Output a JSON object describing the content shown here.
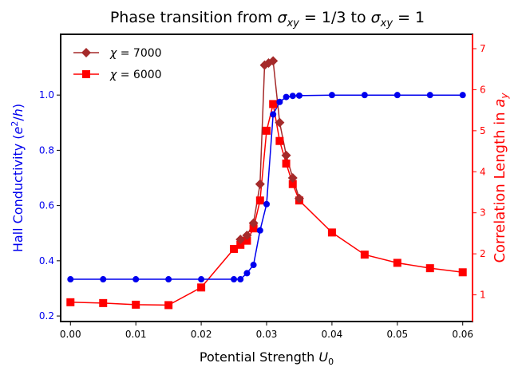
{
  "chart_data": {
    "type": "line",
    "title_parts": [
      "Phase transition from ",
      "σ",
      "xy",
      " = 1/3 to ",
      "σ",
      "xy",
      " = 1"
    ],
    "xlabel_parts": [
      "Potential Strength ",
      "U",
      "0"
    ],
    "ylabel_left_parts": [
      "Hall Conductivity (",
      "e",
      "2",
      "/",
      "h",
      ")"
    ],
    "ylabel_right_parts": [
      "Correlation Length in ",
      "a",
      "y"
    ],
    "xlim": [
      -0.0015,
      0.0615
    ],
    "ylim_left": [
      0.18,
      1.22
    ],
    "ylim_right": [
      0.35,
      7.35
    ],
    "x_ticks": [
      "0.00",
      "0.01",
      "0.02",
      "0.03",
      "0.04",
      "0.05",
      "0.06"
    ],
    "y_left_ticks": [
      "0.2",
      "0.4",
      "0.6",
      "0.8",
      "1.0"
    ],
    "y_right_ticks": [
      "1",
      "2",
      "3",
      "4",
      "5",
      "6",
      "7"
    ],
    "colors": {
      "hall": "#0000ee",
      "chi7000": "#a52a2a",
      "chi6000": "#ff0000",
      "left_axis_text": "#0000ee",
      "right_axis": "#ff0000"
    },
    "legend_position": "top-left",
    "series": [
      {
        "key": "hall",
        "axis": "left",
        "x": [
          0.0,
          0.005,
          0.01,
          0.015,
          0.02,
          0.025,
          0.026,
          0.027,
          0.028,
          0.029,
          0.03,
          0.031,
          0.032,
          0.033,
          0.034,
          0.035,
          0.04,
          0.045,
          0.05,
          0.055,
          0.06
        ],
        "values": [
          0.333,
          0.333,
          0.333,
          0.333,
          0.333,
          0.333,
          0.333,
          0.355,
          0.385,
          0.51,
          0.605,
          0.93,
          0.975,
          0.993,
          0.997,
          0.998,
          1.0,
          1.0,
          1.0,
          1.0,
          1.0
        ]
      },
      {
        "key": "chi7000",
        "name_parts": [
          "χ",
          " = 7000"
        ],
        "axis": "right",
        "x": [
          0.026,
          0.027,
          0.028,
          0.029,
          0.0297,
          0.0303,
          0.031,
          0.032,
          0.033,
          0.034,
          0.035
        ],
        "values": [
          2.35,
          2.45,
          2.75,
          3.7,
          6.6,
          6.65,
          6.7,
          5.2,
          4.4,
          3.85,
          3.35
        ]
      },
      {
        "key": "chi6000",
        "name_parts": [
          "χ",
          " = 6000"
        ],
        "axis": "right",
        "x": [
          0.0,
          0.005,
          0.01,
          0.015,
          0.02,
          0.025,
          0.026,
          0.027,
          0.028,
          0.029,
          0.03,
          0.031,
          0.032,
          0.033,
          0.034,
          0.035,
          0.04,
          0.045,
          0.05,
          0.055,
          0.06
        ],
        "values": [
          0.82,
          0.8,
          0.76,
          0.75,
          1.18,
          2.12,
          2.22,
          2.32,
          2.62,
          3.3,
          5.0,
          5.65,
          4.75,
          4.2,
          3.7,
          3.3,
          2.52,
          1.98,
          1.78,
          1.65,
          1.55
        ]
      }
    ]
  }
}
